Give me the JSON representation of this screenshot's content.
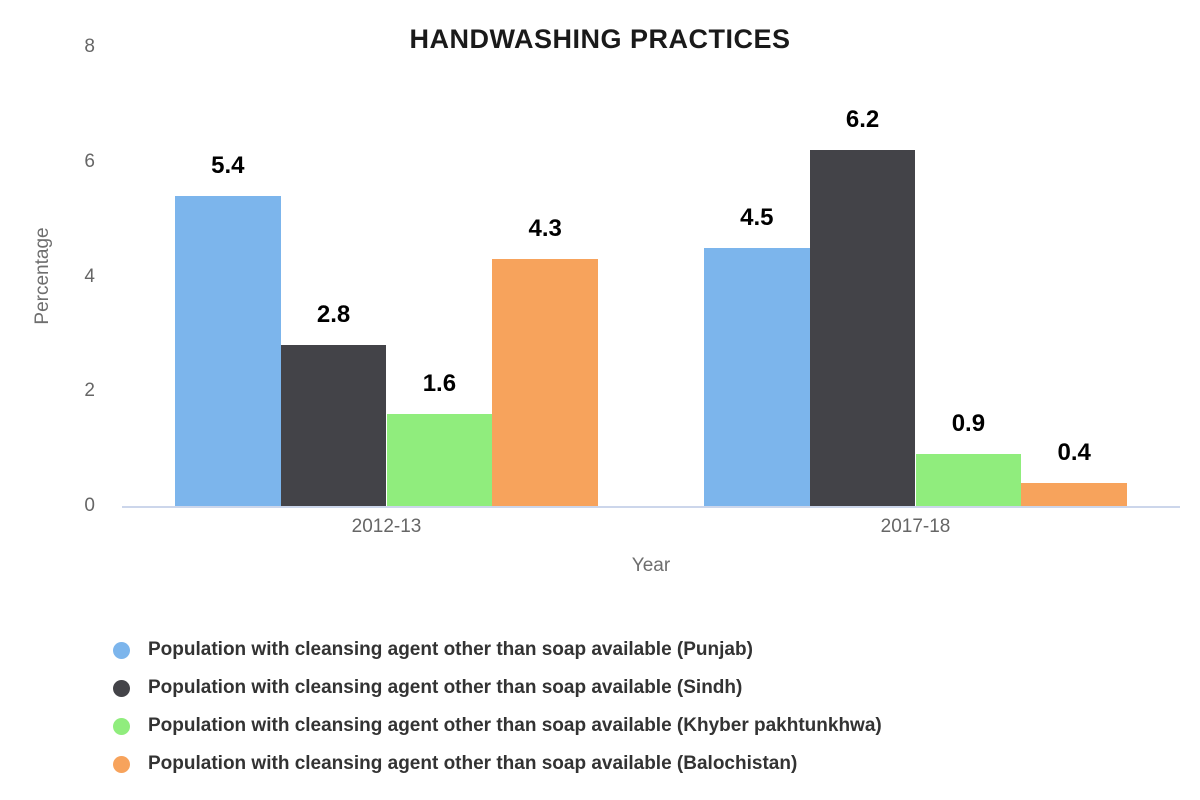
{
  "chart_data": {
    "type": "bar",
    "title": "HANDWASHING PRACTICES",
    "xlabel": "Year",
    "ylabel": "Percentage",
    "categories": [
      "2012-13",
      "2017-18"
    ],
    "series": [
      {
        "name": "Population with cleansing agent other than soap available (Punjab)",
        "color": "#7cb5ec",
        "values": [
          5.4,
          4.5
        ]
      },
      {
        "name": "Population with cleansing agent other than soap available (Sindh)",
        "color": "#434348",
        "values": [
          2.8,
          6.2
        ]
      },
      {
        "name": "Population with cleansing agent other than soap available (Khyber pakhtunkhwa)",
        "color": "#90ed7d",
        "values": [
          1.6,
          0.9
        ]
      },
      {
        "name": "Population with cleansing agent other than soap available (Balochistan)",
        "color": "#f7a35c",
        "values": [
          4.3,
          0.4
        ]
      }
    ],
    "ylim": [
      0,
      8
    ],
    "yticks": [
      0,
      2,
      4,
      6,
      8
    ],
    "grid": false,
    "legend_position": "bottom-left",
    "data_labels_shown": true
  },
  "colors": {
    "background": "#ffffff",
    "axis_line": "#ccd6eb",
    "tick_text": "#666666",
    "axis_title_text": "#6e6e6e",
    "title_text": "#1a1a1a",
    "data_label_text": "#000000",
    "legend_text": "#333333"
  }
}
